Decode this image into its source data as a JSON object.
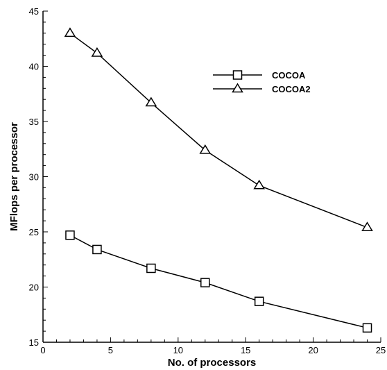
{
  "chart_data": {
    "type": "line",
    "xlabel": "No. of processors",
    "ylabel": "MFlops per processor",
    "xlim": [
      0,
      25
    ],
    "ylim": [
      15,
      45
    ],
    "xticks": [
      0,
      5,
      10,
      15,
      20,
      25
    ],
    "yticks": [
      15,
      20,
      25,
      30,
      35,
      40,
      45
    ],
    "grid": false,
    "legend_position": "top-right",
    "series": [
      {
        "name": "COCOA",
        "marker": "square",
        "x": [
          2,
          4,
          8,
          12,
          16,
          24
        ],
        "y": [
          24.7,
          23.4,
          21.7,
          20.4,
          18.7,
          16.3
        ]
      },
      {
        "name": "COCOA2",
        "marker": "triangle",
        "x": [
          2,
          4,
          8,
          12,
          16,
          24
        ],
        "y": [
          43.0,
          41.2,
          36.7,
          32.4,
          29.2,
          25.4
        ]
      }
    ]
  }
}
